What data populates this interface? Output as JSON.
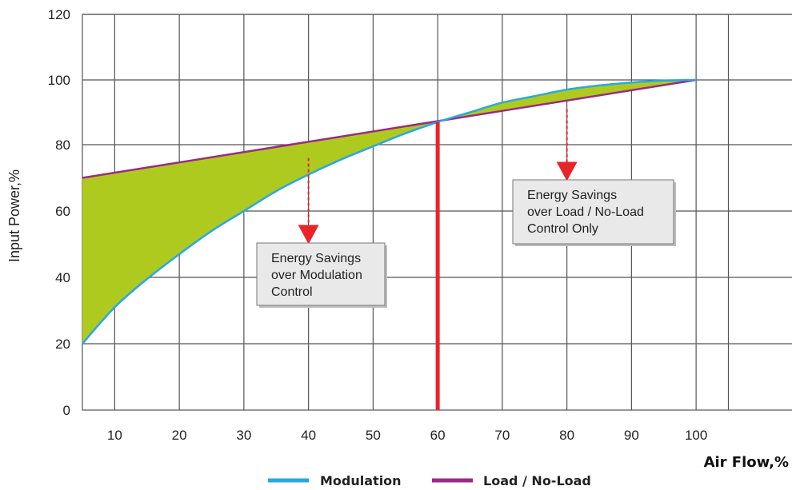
{
  "chart_data": {
    "type": "line",
    "xlabel": "Air Flow,%",
    "ylabel": "Input Power,%",
    "xlim": [
      5,
      110
    ],
    "ylim": [
      0,
      120
    ],
    "x_ticks": [
      10,
      20,
      30,
      40,
      50,
      60,
      70,
      80,
      90,
      100
    ],
    "y_ticks": [
      0,
      20,
      40,
      60,
      80,
      100,
      120
    ],
    "grid": true,
    "legend_position": "bottom-center",
    "series": [
      {
        "name": "Modulation",
        "color": "#29a8e0",
        "x": [
          5,
          10,
          15,
          20,
          25,
          30,
          35,
          40,
          45,
          50,
          55,
          60,
          65,
          70,
          75,
          80,
          85,
          90,
          95,
          100
        ],
        "y": [
          20,
          31,
          39.5,
          47,
          54,
          60,
          66,
          71,
          75.5,
          79.5,
          83.5,
          87,
          90,
          93,
          95,
          97,
          98.3,
          99.2,
          99.8,
          100
        ]
      },
      {
        "name": "Load / No-Load",
        "color": "#9b2a84",
        "x": [
          5,
          100
        ],
        "y": [
          70,
          100
        ]
      }
    ],
    "fill_color": "#afca1e",
    "vertical_marker": {
      "x": 60,
      "color": "#e8242b"
    },
    "annotations": [
      {
        "lines": [
          "Energy Savings",
          "over Modulation",
          "Control"
        ],
        "arrow_x": 40,
        "arrow_from_y": 76,
        "arrow_to_y": 51
      },
      {
        "lines": [
          "Energy Savings",
          "over Load / No-Load",
          "Control Only"
        ],
        "arrow_x": 80,
        "arrow_from_y": 91,
        "arrow_to_y": 70
      }
    ]
  }
}
